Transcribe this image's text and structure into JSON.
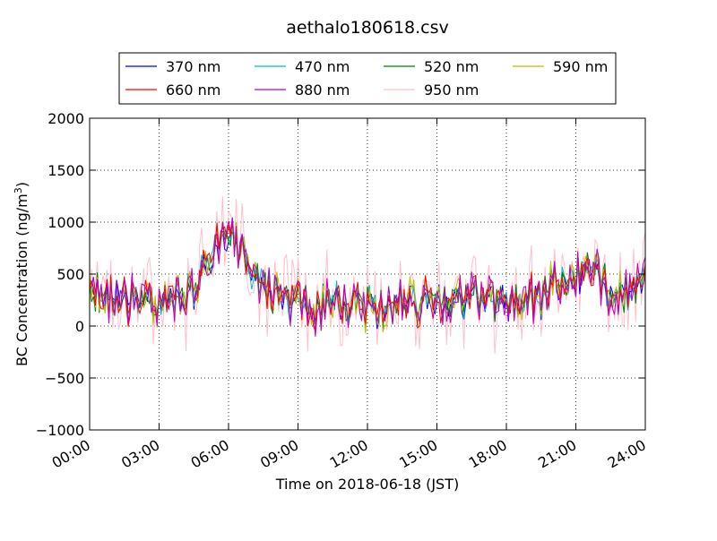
{
  "chart_data": {
    "type": "line",
    "title": "aethalo180618.csv",
    "xlabel": "Time on 2018-06-18 (JST)",
    "ylabel_main": "BC Concentration (ng/m",
    "ylabel_sup": "3",
    "ylabel_end": ")",
    "ylim": [
      -1000,
      2000
    ],
    "yticks": [
      -1000,
      -500,
      0,
      500,
      1000,
      1500,
      2000
    ],
    "ytick_labels": [
      "−1000",
      "−500",
      "0",
      "500",
      "1000",
      "1500",
      "2000"
    ],
    "xlim_hours": [
      0,
      24
    ],
    "xticks_hours": [
      0,
      3,
      6,
      9,
      12,
      15,
      18,
      21,
      24
    ],
    "xtick_labels": [
      "00:00",
      "03:00",
      "06:00",
      "09:00",
      "12:00",
      "15:00",
      "18:00",
      "21:00",
      "24:00"
    ],
    "grid": true,
    "legend_placement": "top-center",
    "x_interval_minutes": 5,
    "key_points": [
      {
        "time": "00:00",
        "value": 300
      },
      {
        "time": "01:00",
        "value": 280
      },
      {
        "time": "02:00",
        "value": 250
      },
      {
        "time": "03:00",
        "value": 220
      },
      {
        "time": "04:00",
        "value": 260
      },
      {
        "time": "04:45",
        "value": 420
      },
      {
        "time": "05:30",
        "value": 760
      },
      {
        "time": "06:00",
        "value": 900
      },
      {
        "time": "06:30",
        "value": 720
      },
      {
        "time": "07:30",
        "value": 420
      },
      {
        "time": "08:30",
        "value": 240
      },
      {
        "time": "09:30",
        "value": 200
      },
      {
        "time": "11:00",
        "value": 220
      },
      {
        "time": "12:00",
        "value": 200
      },
      {
        "time": "13:30",
        "value": 230
      },
      {
        "time": "15:00",
        "value": 260
      },
      {
        "time": "16:30",
        "value": 280
      },
      {
        "time": "17:30",
        "value": 260
      },
      {
        "time": "18:30",
        "value": 250
      },
      {
        "time": "19:30",
        "value": 300
      },
      {
        "time": "20:30",
        "value": 430
      },
      {
        "time": "21:30",
        "value": 500
      },
      {
        "time": "22:30",
        "value": 400
      },
      {
        "time": "23:30",
        "value": 320
      },
      {
        "time": "24:00",
        "value": 380
      }
    ],
    "series": [
      {
        "name": "370 nm",
        "color": "#0000ff",
        "noise": 180
      },
      {
        "name": "470 nm",
        "color": "#00bfbf",
        "noise": 180
      },
      {
        "name": "520 nm",
        "color": "#008000",
        "noise": 190
      },
      {
        "name": "590 nm",
        "color": "#bfbf00",
        "noise": 200
      },
      {
        "name": "660 nm",
        "color": "#ff0000",
        "noise": 200
      },
      {
        "name": "880 nm",
        "color": "#bf00bf",
        "noise": 230
      },
      {
        "name": "950 nm",
        "color": "#ffc0cb",
        "noise": 420
      }
    ]
  }
}
